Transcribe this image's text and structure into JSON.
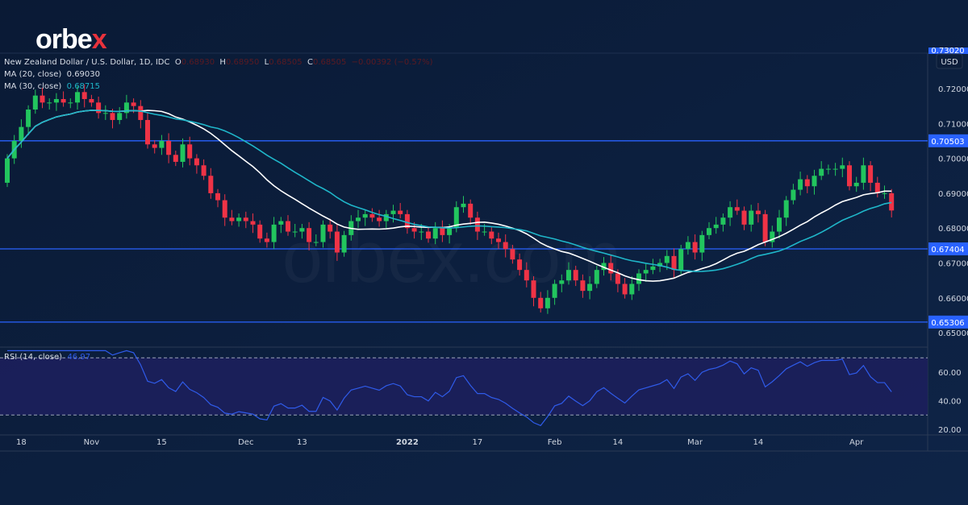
{
  "brand": {
    "name": "orbe",
    "accent": "x",
    "accent_color": "#e8323c",
    "watermark": "orbex.com"
  },
  "legend": {
    "symbol": "New Zealand Dollar / U.S. Dollar, 1D, IDC",
    "o_label": "O",
    "o": "0.68930",
    "h_label": "H",
    "h": "0.68950",
    "l_label": "L",
    "l": "0.68505",
    "c_label": "C",
    "c": "0.68505",
    "change": "−0.00392 (−0.57%)",
    "ma20_label": "MA (20, close)",
    "ma20": "0.69030",
    "ma30_label": "MA (30, close)",
    "ma30": "0.68715",
    "rsi_label": "RSI (14, close)",
    "rsi": "46.97"
  },
  "chart_data": {
    "type": "candlestick",
    "title": "New Zealand Dollar / U.S. Dollar, 1D, IDC",
    "currency": "USD",
    "first_open": 0.693,
    "closes": [
      0.7,
      0.705,
      0.709,
      0.714,
      0.718,
      0.716,
      0.716,
      0.717,
      0.716,
      0.716,
      0.719,
      0.717,
      0.716,
      0.713,
      0.713,
      0.711,
      0.713,
      0.716,
      0.715,
      0.711,
      0.704,
      0.703,
      0.705,
      0.701,
      0.699,
      0.704,
      0.7,
      0.698,
      0.695,
      0.69,
      0.688,
      0.683,
      0.682,
      0.683,
      0.682,
      0.681,
      0.677,
      0.676,
      0.681,
      0.682,
      0.679,
      0.679,
      0.68,
      0.676,
      0.676,
      0.681,
      0.679,
      0.673,
      0.678,
      0.682,
      0.683,
      0.684,
      0.683,
      0.682,
      0.684,
      0.685,
      0.684,
      0.68,
      0.679,
      0.679,
      0.677,
      0.68,
      0.678,
      0.68,
      0.686,
      0.687,
      0.683,
      0.679,
      0.679,
      0.677,
      0.676,
      0.674,
      0.671,
      0.668,
      0.665,
      0.66,
      0.657,
      0.66,
      0.664,
      0.665,
      0.668,
      0.665,
      0.662,
      0.664,
      0.668,
      0.67,
      0.667,
      0.664,
      0.661,
      0.664,
      0.667,
      0.668,
      0.669,
      0.67,
      0.672,
      0.668,
      0.674,
      0.676,
      0.673,
      0.678,
      0.68,
      0.681,
      0.683,
      0.686,
      0.685,
      0.681,
      0.685,
      0.684,
      0.676,
      0.679,
      0.683,
      0.688,
      0.691,
      0.694,
      0.692,
      0.695,
      0.697,
      0.697,
      0.697,
      0.698,
      0.692,
      0.693,
      0.698,
      0.693,
      0.69,
      0.69,
      0.68505
    ],
    "ylim": [
      0.645,
      0.732
    ],
    "y_ticks": [
      "0.72000",
      "0.71000",
      "0.70000",
      "0.69000",
      "0.68000",
      "0.67000",
      "0.66000",
      "0.65000"
    ],
    "top_price_tag": "0.73020",
    "levels": [
      {
        "value": 0.70503,
        "label": "0.70503"
      },
      {
        "value": 0.67404,
        "label": "0.67404"
      },
      {
        "value": 0.65306,
        "label": "0.65306"
      }
    ],
    "rsi_ticks": [
      "60.00",
      "40.00",
      "20.00"
    ],
    "rsi_bands": [
      70,
      30
    ],
    "x_ticks": [
      {
        "i": 2,
        "label": "18"
      },
      {
        "i": 12,
        "label": "Nov"
      },
      {
        "i": 22,
        "label": "15"
      },
      {
        "i": 34,
        "label": "Dec"
      },
      {
        "i": 42,
        "label": "13"
      },
      {
        "i": 57,
        "label": "2022"
      },
      {
        "i": 67,
        "label": "17"
      },
      {
        "i": 78,
        "label": "Feb"
      },
      {
        "i": 87,
        "label": "14"
      },
      {
        "i": 98,
        "label": "Mar"
      },
      {
        "i": 107,
        "label": "14"
      },
      {
        "i": 121,
        "label": "Apr"
      }
    ],
    "colors": {
      "up": "#22c55e",
      "down": "#ef3346",
      "ma20": "#ffffff",
      "ma30": "#1fb6c9",
      "level": "#2962ff",
      "rsi": "#2f5bea",
      "rsi_fill": "#1c1f5c"
    }
  }
}
